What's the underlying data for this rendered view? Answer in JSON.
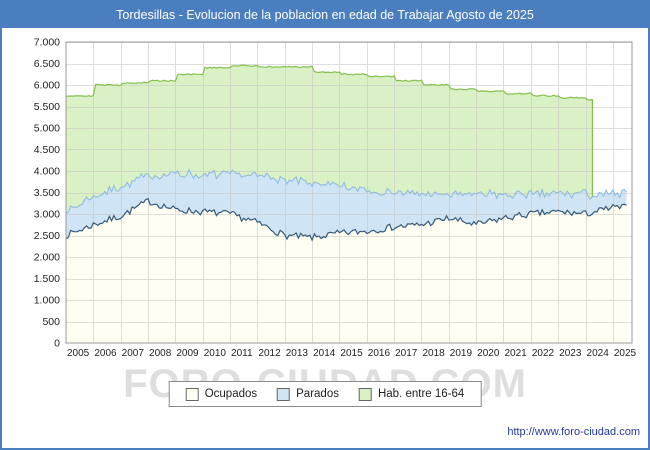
{
  "header": {
    "title": "Tordesillas - Evolucion de la poblacion en edad de Trabajar Agosto de 2025"
  },
  "footer": {
    "url": "http://www.foro-ciudad.com"
  },
  "watermark": "FORO-CIUDAD.COM",
  "chart_data": {
    "type": "area",
    "title": "Tordesillas - Evolucion de la poblacion en edad de Trabajar Agosto de 2025",
    "stacking": "Parados stacked on Ocupados; Hab. entre 16-64 is total population aged 16-64 drawn behind",
    "x": [
      2005,
      2006,
      2007,
      2008,
      2009,
      2010,
      2011,
      2012,
      2013,
      2014,
      2015,
      2016,
      2017,
      2018,
      2019,
      2020,
      2021,
      2022,
      2023,
      2024,
      2025
    ],
    "x_end": 2025.58,
    "hab_end": 2024.25,
    "series": [
      {
        "name": "Ocupados",
        "values": [
          2500,
          2750,
          2950,
          3300,
          3100,
          3050,
          3000,
          2800,
          2500,
          2450,
          2550,
          2600,
          2700,
          2750,
          2900,
          2750,
          2900,
          3000,
          3050,
          3000,
          3150
        ]
      },
      {
        "name": "Parados",
        "values": [
          600,
          650,
          700,
          600,
          850,
          850,
          900,
          1100,
          1300,
          1250,
          1100,
          950,
          800,
          700,
          550,
          700,
          550,
          450,
          450,
          450,
          300
        ]
      },
      {
        "name": "Hab. entre 16-64",
        "values": [
          5750,
          6000,
          6050,
          6100,
          6250,
          6400,
          6450,
          6420,
          6420,
          6300,
          6250,
          6200,
          6100,
          6000,
          5900,
          5850,
          5800,
          5750,
          5700,
          5650,
          null
        ]
      }
    ],
    "ylim": [
      0,
      7000
    ],
    "ytick_step": 500,
    "xlim": [
      2005,
      2025.7
    ],
    "y_tick_labels": [
      "0",
      "500",
      "1.000",
      "1.500",
      "2.000",
      "2.500",
      "3.000",
      "3.500",
      "4.000",
      "4.500",
      "5.000",
      "5.500",
      "6.000",
      "6.500",
      "7.000"
    ],
    "x_tick_labels": [
      "2005",
      "2006",
      "2007",
      "2008",
      "2009",
      "2010",
      "2011",
      "2012",
      "2013",
      "2014",
      "2015",
      "2016",
      "2017",
      "2018",
      "2019",
      "2020",
      "2021",
      "2022",
      "2023",
      "2024",
      "2025"
    ],
    "grid": true,
    "legend_position": "bottom",
    "colors": {
      "title_bar": "#4a7ebf",
      "ocupados_fill": "#fffef2",
      "ocupados_line": "#36597a",
      "parados_fill": "#cfe4f5",
      "parados_line": "#8db9de",
      "hab_fill": "#d9f1c4",
      "hab_line": "#85c04e",
      "grid": "#c9c9c9",
      "url": "#2239a8"
    }
  }
}
